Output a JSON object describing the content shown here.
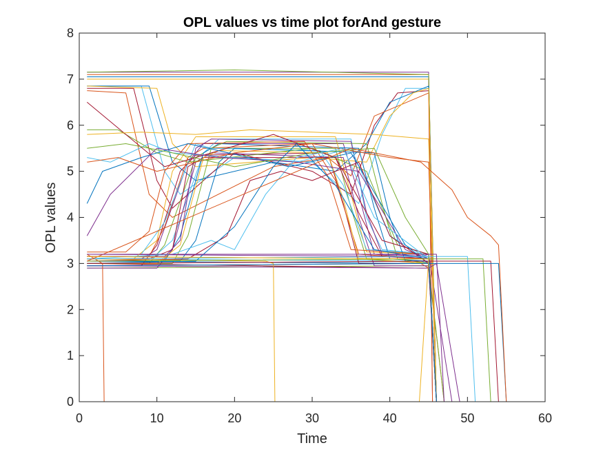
{
  "chart_data": {
    "type": "line",
    "title": "OPL values vs time plot forAnd gesture",
    "xlabel": "Time",
    "ylabel": "OPL values",
    "xlim": [
      0,
      60
    ],
    "ylim": [
      0,
      8
    ],
    "xticks": [
      "0",
      "10",
      "20",
      "30",
      "40",
      "50",
      "60"
    ],
    "yticks": [
      "0",
      "1",
      "2",
      "3",
      "4",
      "5",
      "6",
      "7",
      "8"
    ],
    "grid": false,
    "legend": "none",
    "series_palette": [
      "#0072BD",
      "#D95319",
      "#EDB120",
      "#7E2F8E",
      "#77AC30",
      "#4DBEEE",
      "#A2142F"
    ],
    "series": [
      {
        "x": [
          1,
          44,
          45,
          46
        ],
        "y": [
          3.05,
          3.0,
          3.05,
          0
        ]
      },
      {
        "x": [
          1,
          44,
          45,
          47
        ],
        "y": [
          2.95,
          3.0,
          2.9,
          0
        ]
      },
      {
        "x": [
          1,
          44,
          45,
          46
        ],
        "y": [
          3.15,
          3.1,
          3.1,
          0
        ]
      },
      {
        "x": [
          1,
          44,
          45,
          48
        ],
        "y": [
          3.2,
          3.15,
          3.2,
          0
        ]
      },
      {
        "x": [
          1,
          44,
          45,
          47
        ],
        "y": [
          2.9,
          2.95,
          2.95,
          0
        ]
      },
      {
        "x": [
          1,
          44,
          45,
          46
        ],
        "y": [
          3.1,
          3.05,
          3.0,
          0
        ]
      },
      {
        "x": [
          1,
          44,
          45,
          46
        ],
        "y": [
          3.0,
          2.9,
          2.9,
          0
        ]
      },
      {
        "x": [
          1,
          45,
          46
        ],
        "y": [
          7.05,
          7.05,
          0
        ]
      },
      {
        "x": [
          1,
          45,
          46
        ],
        "y": [
          7.1,
          7.1,
          0
        ]
      },
      {
        "x": [
          1,
          45,
          46
        ],
        "y": [
          7.0,
          7.0,
          0
        ]
      },
      {
        "x": [
          1,
          45,
          45.5
        ],
        "y": [
          7.15,
          7.15,
          0
        ]
      },
      {
        "x": [
          1,
          20,
          45,
          46
        ],
        "y": [
          7.15,
          7.2,
          7.1,
          0
        ]
      },
      {
        "x": [
          1,
          8,
          11,
          13,
          20,
          30,
          36,
          39,
          42,
          45,
          46
        ],
        "y": [
          6.85,
          6.85,
          5.0,
          4.5,
          5.3,
          5.2,
          4.3,
          5.8,
          6.8,
          6.8,
          0
        ]
      },
      {
        "x": [
          1,
          7,
          10,
          12,
          20,
          30,
          35,
          38,
          41,
          45,
          46
        ],
        "y": [
          6.8,
          6.8,
          4.8,
          4.2,
          5.4,
          5.0,
          4.5,
          6.0,
          6.7,
          6.75,
          0
        ]
      },
      {
        "x": [
          1,
          9,
          12,
          15,
          25,
          33,
          37,
          40,
          45,
          46
        ],
        "y": [
          6.85,
          6.85,
          5.2,
          4.8,
          5.2,
          5.0,
          5.6,
          6.5,
          6.85,
          0
        ]
      },
      {
        "x": [
          1,
          6,
          9,
          12,
          25,
          32,
          35,
          38,
          45,
          45.5
        ],
        "y": [
          6.75,
          6.7,
          4.5,
          4.0,
          5.1,
          5.3,
          4.9,
          6.2,
          6.7,
          0
        ]
      },
      {
        "x": [
          1,
          10,
          12,
          15,
          30,
          37,
          40,
          43,
          45,
          46
        ],
        "y": [
          6.85,
          6.8,
          5.6,
          5.1,
          5.3,
          5.2,
          6.2,
          6.7,
          6.8,
          0
        ]
      },
      {
        "x": [
          1,
          8,
          10,
          14,
          16,
          34,
          36,
          38,
          45,
          46
        ],
        "y": [
          3.1,
          3.1,
          3.3,
          5.2,
          5.6,
          5.6,
          4.5,
          3.2,
          3.1,
          0
        ]
      },
      {
        "x": [
          1,
          9,
          11,
          15,
          17,
          33,
          35,
          37,
          45,
          46
        ],
        "y": [
          3.0,
          3.0,
          3.4,
          5.3,
          5.5,
          5.5,
          4.2,
          3.1,
          3.0,
          0
        ]
      },
      {
        "x": [
          1,
          10,
          12,
          16,
          18,
          35,
          37,
          39,
          45,
          46
        ],
        "y": [
          3.2,
          3.2,
          3.5,
          5.4,
          5.7,
          5.7,
          4.0,
          3.3,
          3.2,
          0
        ]
      },
      {
        "x": [
          1,
          8,
          10,
          13,
          15,
          32,
          34,
          36,
          45,
          46
        ],
        "y": [
          2.95,
          2.95,
          3.4,
          5.0,
          5.35,
          5.4,
          4.3,
          3.0,
          3.0,
          0
        ]
      },
      {
        "x": [
          1,
          11,
          13,
          16,
          18,
          36,
          38,
          40,
          45,
          46
        ],
        "y": [
          3.05,
          3.05,
          3.6,
          5.4,
          5.6,
          5.5,
          4.2,
          3.1,
          3.05,
          0
        ]
      },
      {
        "x": [
          1,
          9,
          11,
          14,
          16,
          30,
          33,
          36,
          45,
          46
        ],
        "y": [
          3.15,
          3.15,
          3.8,
          5.3,
          5.5,
          5.6,
          4.8,
          3.2,
          3.1,
          0
        ]
      },
      {
        "x": [
          1,
          7,
          10,
          12,
          15,
          33,
          35,
          37,
          45,
          46
        ],
        "y": [
          3.1,
          3.1,
          3.5,
          5.0,
          5.75,
          5.75,
          4.5,
          3.25,
          3.2,
          0
        ]
      },
      {
        "x": [
          1,
          10,
          12,
          15,
          17,
          34,
          36,
          38,
          45,
          46
        ],
        "y": [
          2.9,
          2.9,
          3.3,
          5.2,
          5.4,
          5.3,
          4.0,
          2.95,
          2.95,
          0
        ]
      },
      {
        "x": [
          1,
          12,
          14,
          17,
          19,
          37,
          39,
          41,
          45,
          46
        ],
        "y": [
          3.0,
          3.0,
          3.6,
          5.5,
          5.65,
          5.6,
          4.3,
          3.1,
          3.0,
          0
        ]
      },
      {
        "x": [
          1,
          8,
          11,
          15,
          17,
          31,
          34,
          37,
          45,
          46
        ],
        "y": [
          3.2,
          3.2,
          3.9,
          5.6,
          5.5,
          5.45,
          4.7,
          3.3,
          3.2,
          0
        ]
      },
      {
        "x": [
          1,
          9,
          12,
          14,
          16,
          33,
          36,
          39,
          45,
          46
        ],
        "y": [
          3.1,
          3.1,
          3.3,
          5.1,
          5.3,
          5.3,
          4.1,
          3.15,
          3.1,
          0
        ]
      },
      {
        "x": [
          1,
          13,
          15,
          18,
          20,
          38,
          40,
          42,
          45,
          46
        ],
        "y": [
          3.05,
          3.05,
          3.5,
          5.2,
          5.5,
          5.4,
          4.0,
          3.05,
          3.05,
          0
        ]
      },
      {
        "x": [
          1,
          6,
          9,
          11,
          14,
          29,
          32,
          35,
          45,
          46
        ],
        "y": [
          3.25,
          3.25,
          3.7,
          5.0,
          5.6,
          5.65,
          4.9,
          3.3,
          3.2,
          0
        ]
      },
      {
        "x": [
          1,
          10,
          13,
          16,
          18,
          32,
          34,
          36,
          45,
          46
        ],
        "y": [
          3.0,
          3.0,
          3.4,
          5.3,
          5.45,
          5.4,
          4.4,
          3.1,
          3.0,
          0
        ]
      },
      {
        "x": [
          1,
          11,
          13,
          15,
          17,
          35,
          37,
          39,
          45,
          46
        ],
        "y": [
          3.15,
          3.15,
          3.5,
          5.5,
          5.7,
          5.65,
          4.1,
          3.2,
          3.15,
          0
        ]
      },
      {
        "x": [
          1,
          5,
          10,
          14,
          30,
          37,
          41,
          45,
          46
        ],
        "y": [
          5.9,
          5.9,
          5.4,
          5.2,
          5.5,
          5.0,
          3.4,
          3.2,
          0
        ]
      },
      {
        "x": [
          1,
          4,
          9,
          12,
          28,
          35,
          40,
          45,
          46
        ],
        "y": [
          5.3,
          5.2,
          5.6,
          5.4,
          5.2,
          5.5,
          3.6,
          3.1,
          0
        ]
      },
      {
        "x": [
          1,
          6,
          11,
          15,
          25,
          33,
          39,
          45,
          46
        ],
        "y": [
          6.5,
          5.8,
          5.1,
          5.3,
          5.8,
          5.3,
          3.5,
          3.2,
          0
        ]
      },
      {
        "x": [
          1,
          3,
          8,
          14,
          27,
          35,
          42,
          45,
          46
        ],
        "y": [
          4.3,
          5.0,
          5.3,
          5.6,
          5.1,
          5.4,
          3.4,
          3.0,
          0
        ]
      },
      {
        "x": [
          1,
          5,
          10,
          20,
          30,
          40,
          45,
          46
        ],
        "y": [
          5.2,
          5.3,
          5.0,
          5.4,
          5.6,
          5.3,
          5.2,
          0
        ]
      },
      {
        "x": [
          1,
          8,
          15,
          22,
          30,
          38,
          45,
          46
        ],
        "y": [
          5.8,
          5.85,
          5.8,
          5.9,
          5.85,
          5.8,
          5.7,
          0
        ]
      },
      {
        "x": [
          1,
          4,
          10,
          18,
          28,
          36,
          42,
          45,
          46
        ],
        "y": [
          3.6,
          4.5,
          5.5,
          5.3,
          5.2,
          5.0,
          3.3,
          3.1,
          0
        ]
      },
      {
        "x": [
          1,
          6,
          12,
          20,
          30,
          38,
          42,
          45,
          46
        ],
        "y": [
          5.5,
          5.6,
          5.4,
          5.1,
          5.4,
          5.5,
          4.0,
          3.2,
          0
        ]
      },
      {
        "x": [
          1,
          12,
          17,
          20,
          24,
          28,
          34,
          38,
          45,
          46
        ],
        "y": [
          3.1,
          3.2,
          3.5,
          3.3,
          4.5,
          5.3,
          5.5,
          4.0,
          3.1,
          0
        ]
      },
      {
        "x": [
          1,
          14,
          19,
          22,
          26,
          30,
          36,
          40,
          45,
          46
        ],
        "y": [
          3.05,
          3.1,
          3.6,
          4.8,
          5.0,
          4.8,
          5.2,
          3.6,
          3.0,
          0
        ]
      },
      {
        "x": [
          1,
          15,
          20,
          25,
          28,
          33,
          38,
          45,
          46
        ],
        "y": [
          3.0,
          3.05,
          3.8,
          5.1,
          5.6,
          4.7,
          3.3,
          3.1,
          0
        ]
      },
      {
        "x": [
          1,
          3,
          3.2,
          45
        ],
        "y": [
          3.2,
          3.0,
          0,
          0
        ]
      },
      {
        "x": [
          1,
          24,
          25,
          25.2,
          46
        ],
        "y": [
          3.1,
          3.05,
          3.0,
          0,
          0
        ]
      },
      {
        "x": [
          1,
          45,
          46,
          49
        ],
        "y": [
          2.95,
          2.9,
          3.0,
          0
        ]
      },
      {
        "x": [
          1,
          45,
          52,
          53
        ],
        "y": [
          3.05,
          3.1,
          3.1,
          0
        ]
      },
      {
        "x": [
          1,
          45,
          50,
          51
        ],
        "y": [
          3.1,
          3.15,
          3.15,
          0
        ]
      },
      {
        "x": [
          1,
          45,
          53,
          54
        ],
        "y": [
          3.0,
          3.05,
          3.05,
          0
        ]
      },
      {
        "x": [
          1,
          45,
          54,
          55
        ],
        "y": [
          2.95,
          3.0,
          3.0,
          0
        ]
      },
      {
        "x": [
          1,
          35,
          44,
          48,
          50,
          53,
          54,
          55
        ],
        "y": [
          3.05,
          5.5,
          5.2,
          4.6,
          4.0,
          3.6,
          3.4,
          0
        ]
      },
      {
        "x": [
          1,
          44,
          45,
          43.8
        ],
        "y": [
          3.15,
          3.1,
          3.1,
          0
        ]
      },
      {
        "x": [
          1,
          45,
          46,
          47
        ],
        "y": [
          3.2,
          3.2,
          3.2,
          0
        ]
      }
    ]
  }
}
